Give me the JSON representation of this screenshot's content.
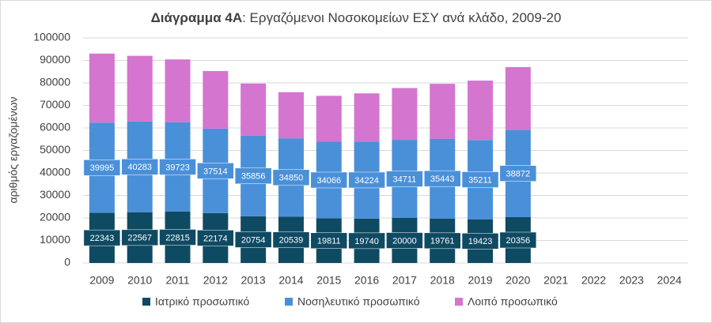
{
  "chart_data": {
    "type": "stacked_bar",
    "title": {
      "bold": "Διάγραμμα 4Α",
      "rest": ": Εργαζόμενοι Νοσοκομείων ΕΣΥ ανά κλάδο, 2009-20"
    },
    "y_label": "αριθμός εργαζομένων",
    "categories": [
      "2009",
      "2010",
      "2011",
      "2012",
      "2013",
      "2014",
      "2015",
      "2016",
      "2017",
      "2018",
      "2019",
      "2020",
      "2021",
      "2022",
      "2023",
      "2024"
    ],
    "series": [
      {
        "name": "Ιατρικό προσωπικό",
        "color": "#0f4a63",
        "labels": true,
        "values": [
          22343,
          22567,
          22815,
          22174,
          20754,
          20539,
          19811,
          19740,
          20000,
          19761,
          19423,
          20356,
          null,
          null,
          null,
          null
        ]
      },
      {
        "name": "Νοσηλευτικό προσωπικό",
        "color": "#4a90d9",
        "labels": true,
        "values": [
          39995,
          40283,
          39723,
          37514,
          35856,
          34850,
          34066,
          34224,
          34711,
          35443,
          35211,
          38872,
          null,
          null,
          null,
          null
        ]
      },
      {
        "name": "Λοιπό προσωπικό",
        "color": "#d475d0",
        "labels": false,
        "values": [
          30700,
          29200,
          27900,
          25600,
          23100,
          20500,
          20400,
          21400,
          23000,
          24400,
          26400,
          27800,
          null,
          null,
          null,
          null
        ]
      }
    ],
    "ylim": [
      0,
      100000
    ],
    "yticks": [
      0,
      10000,
      20000,
      30000,
      40000,
      50000,
      60000,
      70000,
      80000,
      90000,
      100000
    ],
    "grid": true
  }
}
